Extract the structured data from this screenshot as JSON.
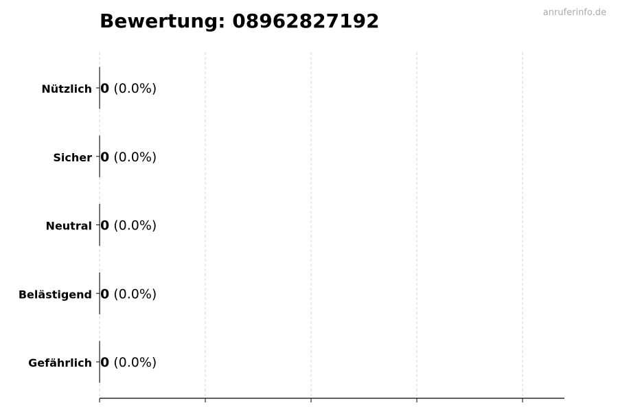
{
  "chart_data": {
    "type": "bar",
    "orientation": "horizontal",
    "title": "Bewertung: 08962827192",
    "watermark": "anruferinfo.de",
    "categories": [
      "Nützlich",
      "Sicher",
      "Neutral",
      "Belästigend",
      "Gefährlich"
    ],
    "values": [
      0,
      0,
      0,
      0,
      0
    ],
    "data_labels": [
      {
        "count": "0",
        "percent": "(0.0%)"
      },
      {
        "count": "0",
        "percent": "(0.0%)"
      },
      {
        "count": "0",
        "percent": "(0.0%)"
      },
      {
        "count": "0",
        "percent": "(0.0%)"
      },
      {
        "count": "0",
        "percent": "(0.0%)"
      }
    ],
    "xlabel": "",
    "ylabel": "",
    "grid": "vertical dashed",
    "x_tick_labels_shown": false,
    "colors": {
      "bar_edge": "#000000",
      "grid": "#cccccc",
      "watermark": "#aaaaaa"
    }
  }
}
